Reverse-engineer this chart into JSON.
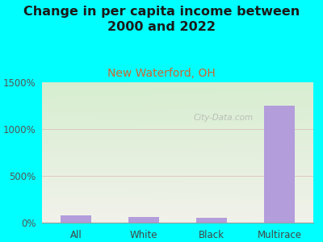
{
  "title": "Change in per capita income between\n2000 and 2022",
  "subtitle": "New Waterford, OH",
  "categories": [
    "All",
    "White",
    "Black",
    "Multirace"
  ],
  "values": [
    75,
    60,
    50,
    1250
  ],
  "bar_color": "#b39ddb",
  "title_fontsize": 11.5,
  "subtitle_fontsize": 10,
  "subtitle_color": "#cc6633",
  "title_color": "#1a1a1a",
  "background_color": "#00ffff",
  "plot_bg_color_topleft": "#d6eecf",
  "plot_bg_color_topright": "#e8f0d8",
  "plot_bg_color_bottom": "#f5f5ee",
  "ylim": [
    0,
    1500
  ],
  "yticks": [
    0,
    500,
    1000,
    1500
  ],
  "ytick_labels": [
    "0%",
    "500%",
    "1000%",
    "1500%"
  ],
  "gridline_color": "#d4a0a0",
  "gridline_alpha": 0.5,
  "watermark": "City-Data.com",
  "bar_width": 0.45
}
